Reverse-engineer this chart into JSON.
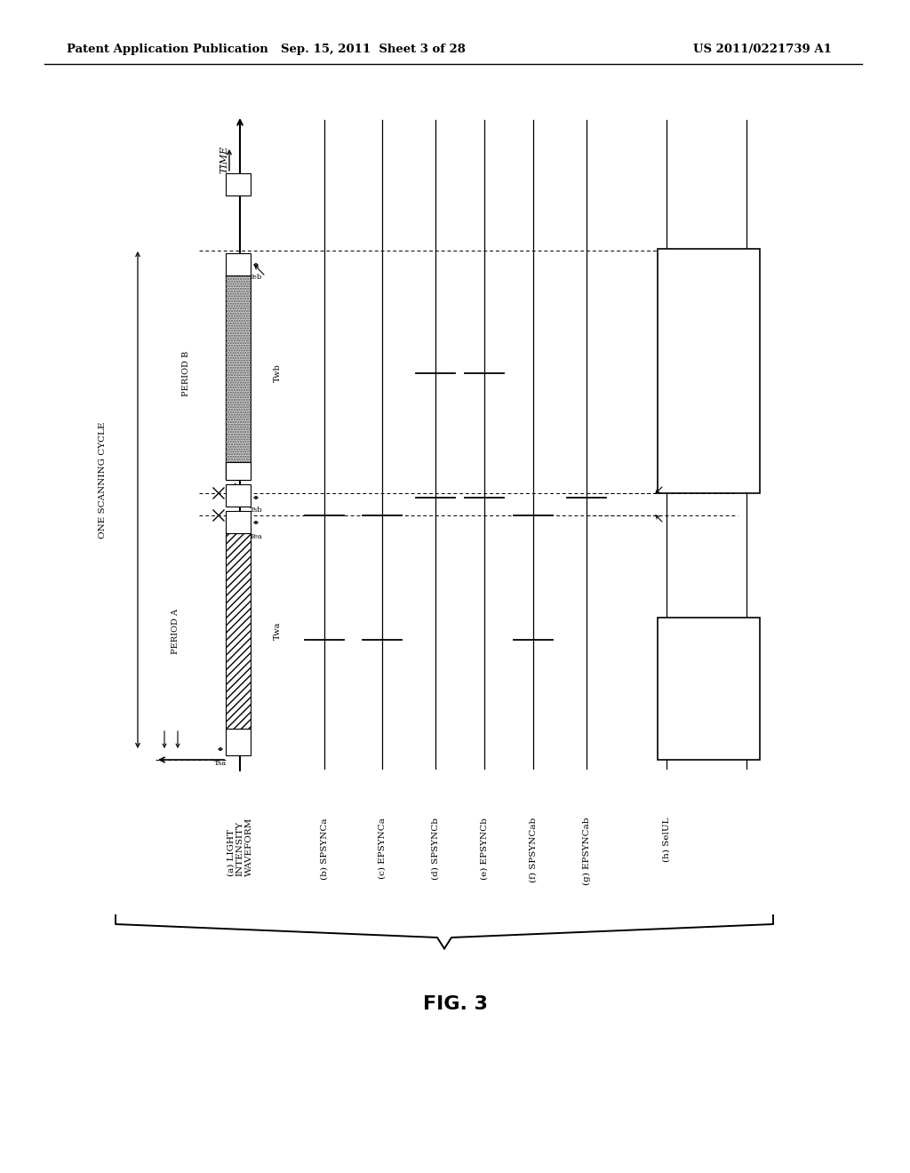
{
  "header_left": "Patent Application Publication",
  "header_center": "Sep. 15, 2011  Sheet 3 of 28",
  "header_right": "US 2011/0221739 A1",
  "bg_color": "#ffffff",
  "title": "FIG. 3",
  "labels": [
    "(a) LIGHT\nINTENSITY\nWAVEFORM",
    "(b) SPSYNCa",
    "(c) EPSYNCa",
    "(d) SPSYNCb",
    "(e) EPSYNCb",
    "(f) SPSYNCab",
    "(g) EPSYNCab",
    "(h) SelUL"
  ]
}
